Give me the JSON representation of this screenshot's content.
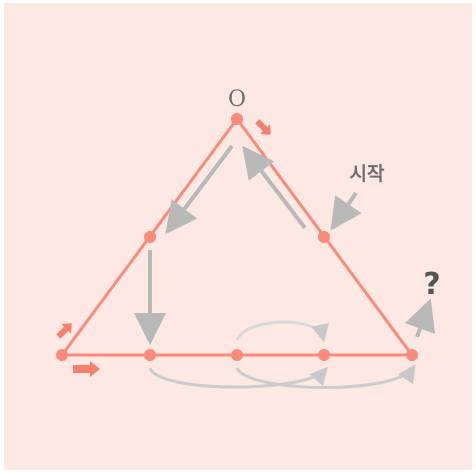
{
  "labels": {
    "vertex_top": "O",
    "start": "시작",
    "question": "?"
  },
  "colors": {
    "background": "#fde8e3",
    "triangle": "#fa8a7a",
    "point": "#fa8a7a",
    "direction_arrow": "#f6806d",
    "path_arrow": "#b9b9b9",
    "text": "#6f6f6f"
  },
  "icons": {
    "direction": "thick-arrow",
    "path": "gray-arrow"
  }
}
